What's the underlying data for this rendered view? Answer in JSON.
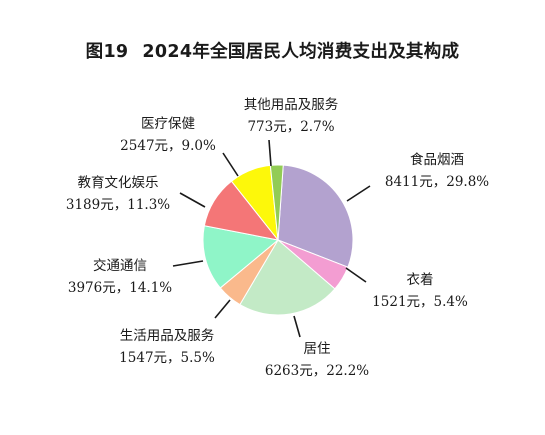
{
  "page": {
    "figure_number": "图19",
    "title": "2024年全国居民人均消费支出及其构成"
  },
  "chart_data": {
    "type": "pie",
    "title": "2024年全国居民人均消费支出及其构成",
    "unit": "元",
    "slices": [
      {
        "name": "食品烟酒",
        "value": 8411,
        "pct": 29.8,
        "value_label": "8411元，29.8%",
        "color": "#b3a2cf"
      },
      {
        "name": "衣着",
        "value": 1521,
        "pct": 5.4,
        "value_label": "1521元，5.4%",
        "color": "#f39dd2"
      },
      {
        "name": "居住",
        "value": 6263,
        "pct": 22.2,
        "value_label": "6263元，22.2%",
        "color": "#c3eac6"
      },
      {
        "name": "生活用品及服务",
        "value": 1547,
        "pct": 5.5,
        "value_label": "1547元，5.5%",
        "color": "#fab98c"
      },
      {
        "name": "交通通信",
        "value": 3976,
        "pct": 14.1,
        "value_label": "3976元，14.1%",
        "color": "#8ff5c8"
      },
      {
        "name": "教育文化娱乐",
        "value": 3189,
        "pct": 11.3,
        "value_label": "3189元，11.3%",
        "color": "#f47677"
      },
      {
        "name": "医疗保健",
        "value": 2547,
        "pct": 9.0,
        "value_label": "2547元，9.0%",
        "color": "#fdf80a"
      },
      {
        "name": "其他用品及服务",
        "value": 773,
        "pct": 2.7,
        "value_label": "773元，2.7%",
        "color": "#92cc55"
      }
    ]
  }
}
